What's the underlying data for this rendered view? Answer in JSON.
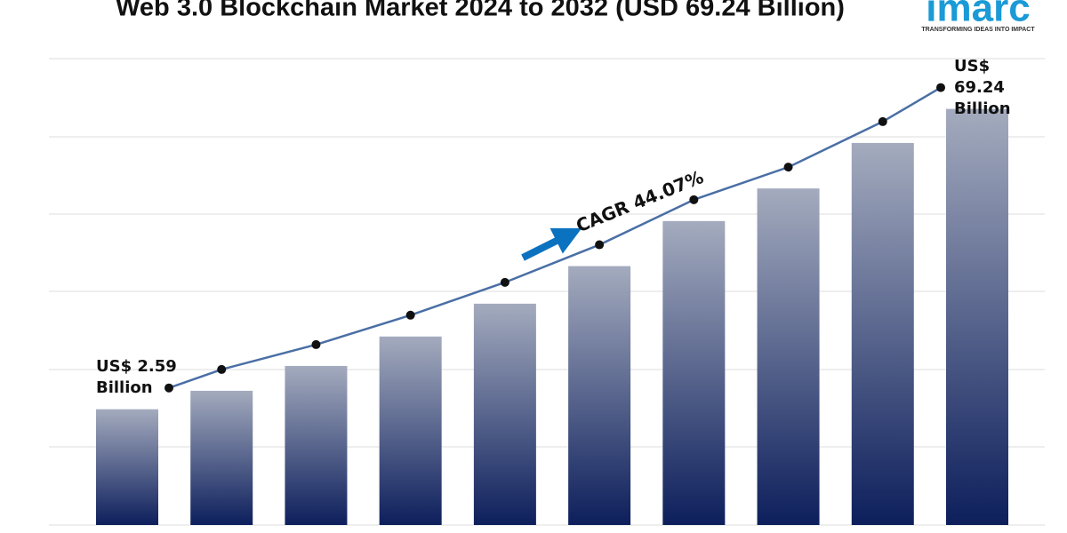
{
  "chart_data": {
    "type": "bar",
    "title": "Web 3.0 Blockchain Market 2024 to 2032 (USD 69.24 Billion)",
    "values": [
      2.59,
      3.17,
      4.16,
      5.74,
      8.22,
      12.4,
      20.3,
      29.0,
      47.7,
      69.24
    ],
    "value_labels": [
      "US$ 2.59 Billion",
      null,
      null,
      null,
      null,
      null,
      null,
      null,
      null,
      "US$ 69.24 Billion"
    ],
    "annotation": "CAGR 44.07%",
    "ylim": [
      0.73,
      120
    ],
    "log_scale": true,
    "color": "#0d1f5c",
    "line_color": "#4a6fa5"
  },
  "logo": {
    "name": "imarc",
    "tagline": "TRANSFORMING IDEAS INTO IMPACT"
  }
}
